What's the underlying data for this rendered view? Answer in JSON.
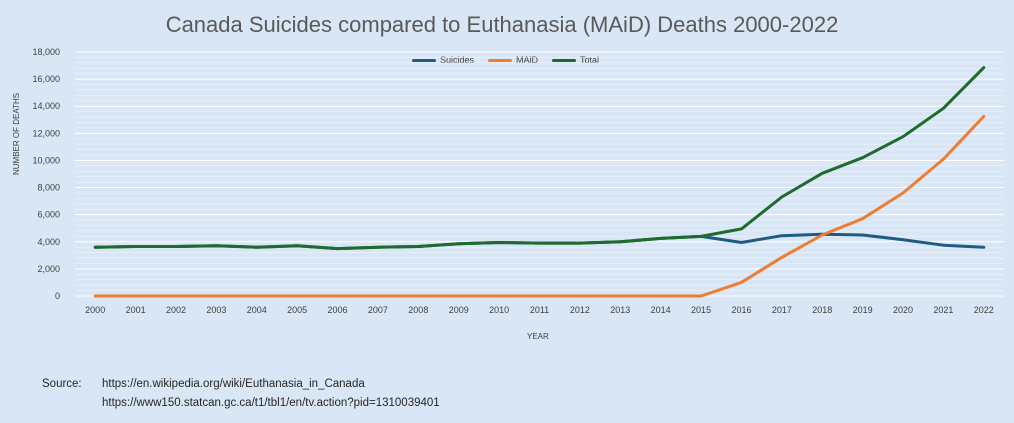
{
  "chart_data": {
    "type": "line",
    "title": "Canada Suicides compared to Euthanasia (MAiD) Deaths 2000-2022",
    "xlabel": "YEAR",
    "ylabel": "NUMBER OF DEATHS",
    "ylim": [
      0,
      18000
    ],
    "yticks": [
      "0",
      "2,000",
      "4,000",
      "6,000",
      "8,000",
      "10,000",
      "12,000",
      "14,000",
      "16,000",
      "18,000"
    ],
    "grid": true,
    "legend_position": "top-center",
    "x": [
      "2000",
      "2001",
      "2002",
      "2003",
      "2004",
      "2005",
      "2006",
      "2007",
      "2008",
      "2009",
      "2010",
      "2011",
      "2012",
      "2013",
      "2014",
      "2015",
      "2016",
      "2017",
      "2018",
      "2019",
      "2020",
      "2021",
      "2022"
    ],
    "series": [
      {
        "name": "Suicides",
        "color": "#1f5b82",
        "values": [
          3600,
          3650,
          3650,
          3700,
          3600,
          3700,
          3500,
          3600,
          3650,
          3850,
          3950,
          3900,
          3900,
          4000,
          4250,
          4400,
          3950,
          4450,
          4550,
          4500,
          4150,
          3750,
          3600
        ]
      },
      {
        "name": "MAiD",
        "color": "#ed7d31",
        "values": [
          0,
          0,
          0,
          0,
          0,
          0,
          0,
          0,
          0,
          0,
          0,
          0,
          0,
          0,
          0,
          0,
          1000,
          2850,
          4500,
          5700,
          7600,
          10100,
          13250
        ]
      },
      {
        "name": "Total",
        "color": "#1e6b2b",
        "values": [
          3600,
          3650,
          3650,
          3700,
          3600,
          3700,
          3500,
          3600,
          3650,
          3850,
          3950,
          3900,
          3900,
          4000,
          4250,
          4400,
          4950,
          7300,
          9050,
          10200,
          11750,
          13850,
          16850
        ]
      }
    ]
  },
  "source": {
    "label": "Source:",
    "lines": [
      "https://en.wikipedia.org/wiki/Euthanasia_in_Canada",
      "https://www150.statcan.gc.ca/t1/tbl1/en/tv.action?pid=1310039401"
    ]
  }
}
